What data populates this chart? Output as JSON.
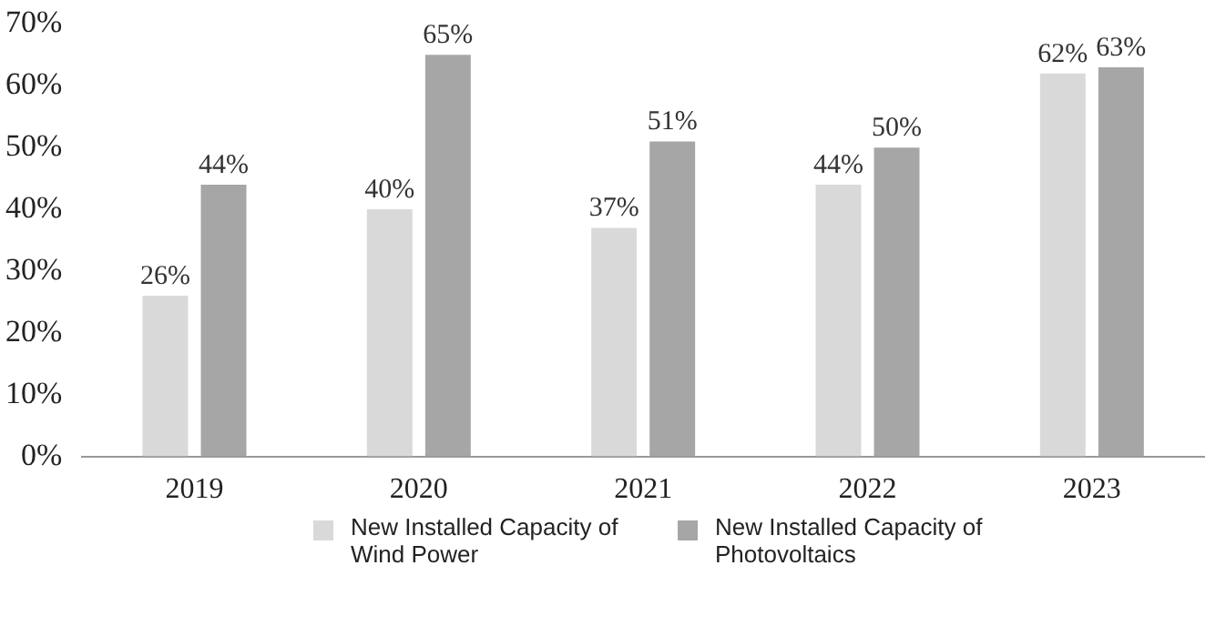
{
  "chart_data": {
    "type": "bar",
    "categories": [
      "2019",
      "2020",
      "2021",
      "2022",
      "2023"
    ],
    "series": [
      {
        "name": "New Installed Capacity of Wind Power",
        "color": "#d9d9d9",
        "values": [
          26,
          40,
          37,
          44,
          62
        ],
        "value_labels": [
          "26%",
          "40%",
          "37%",
          "44%",
          "62%"
        ]
      },
      {
        "name": "New Installed Capacity of Photovoltaics",
        "color": "#a6a6a6",
        "values": [
          44,
          65,
          51,
          50,
          63
        ],
        "value_labels": [
          "44%",
          "65%",
          "51%",
          "50%",
          "63%"
        ]
      }
    ],
    "ylim": [
      0,
      70
    ],
    "yticks": [
      {
        "value": 0,
        "label": "0%"
      },
      {
        "value": 10,
        "label": "10%"
      },
      {
        "value": 20,
        "label": "20%"
      },
      {
        "value": 30,
        "label": "30%"
      },
      {
        "value": 40,
        "label": "40%"
      },
      {
        "value": 50,
        "label": "50%"
      },
      {
        "value": 60,
        "label": "60%"
      },
      {
        "value": 70,
        "label": "70%"
      }
    ],
    "grid": false,
    "legend": "bottom"
  }
}
